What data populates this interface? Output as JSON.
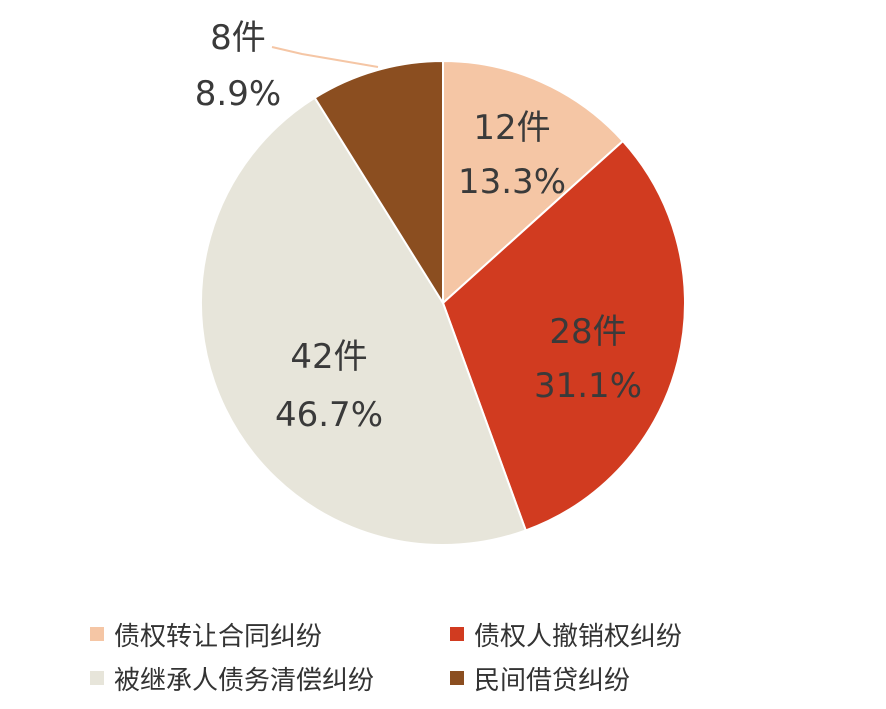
{
  "chart_data": {
    "type": "pie",
    "start_angle_deg": 0,
    "direction": "clockwise",
    "slices": [
      {
        "name": "债权转让合同纠纷",
        "value": 12,
        "count_label": "12件",
        "percent_label": "13.3%",
        "color": "#F5C6A5"
      },
      {
        "name": "债权人撤销权纠纷",
        "value": 28,
        "count_label": "28件",
        "percent_label": "31.1%",
        "color": "#D13B20"
      },
      {
        "name": "被继承人债务清偿纠纷",
        "value": 42,
        "count_label": "42件",
        "percent_label": "46.7%",
        "color": "#E7E5DA"
      },
      {
        "name": "民间借贷纠纷",
        "value": 8,
        "count_label": "8件",
        "percent_label": "8.9%",
        "color": "#8B4E20"
      }
    ],
    "legend_position": "bottom"
  }
}
